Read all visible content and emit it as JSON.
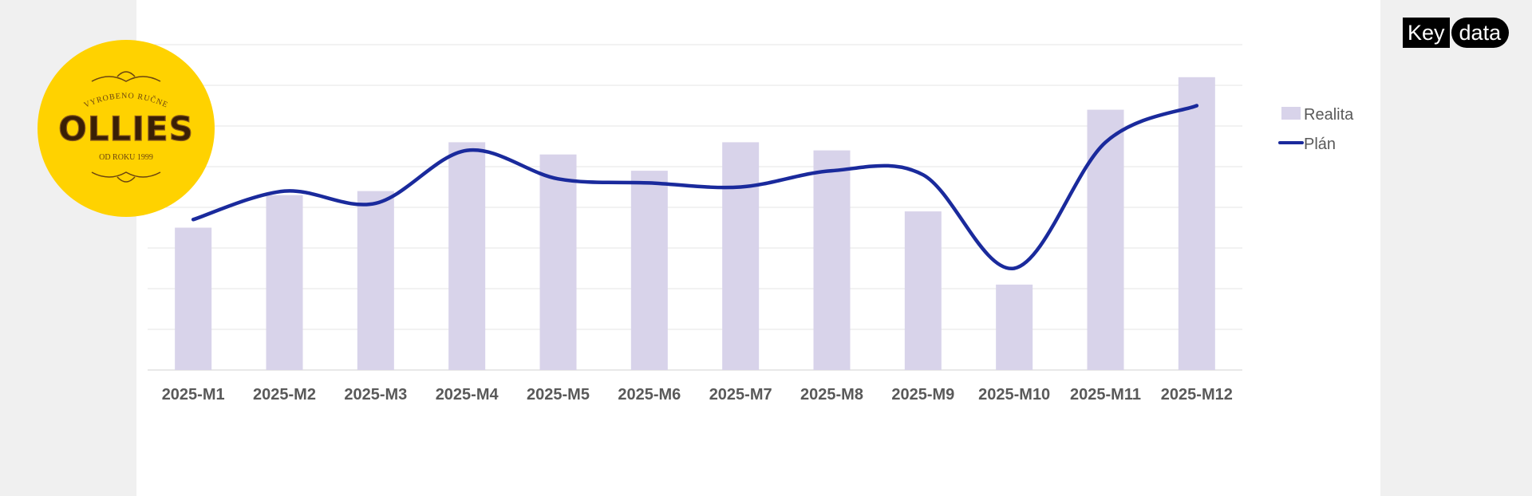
{
  "brand": {
    "logo_name": "OLLIES",
    "logo_top_text": "VYROBENO RUČNE",
    "logo_bottom_text": "OD ROKU 1999",
    "logo_color": "#ffd200",
    "watermark_key": "Key",
    "watermark_data": "data"
  },
  "chart_data": {
    "type": "bar",
    "categories": [
      "2025-M1",
      "2025-M2",
      "2025-M3",
      "2025-M4",
      "2025-M5",
      "2025-M6",
      "2025-M7",
      "2025-M8",
      "2025-M9",
      "2025-M10",
      "2025-M11",
      "2025-M12"
    ],
    "series": [
      {
        "name": "Realita",
        "type": "bar",
        "color": "#d8d3ea",
        "values": [
          3.5,
          4.3,
          4.4,
          5.6,
          5.3,
          4.9,
          5.6,
          5.4,
          3.9,
          2.1,
          6.4,
          7.2
        ]
      },
      {
        "name": "Plán",
        "type": "line",
        "color": "#1a2a9c",
        "values": [
          3.7,
          4.4,
          4.1,
          5.4,
          4.7,
          4.6,
          4.5,
          4.9,
          4.8,
          2.5,
          5.6,
          6.5
        ]
      }
    ],
    "ylim": [
      0,
      8
    ],
    "grid": true,
    "legend_position": "right"
  }
}
